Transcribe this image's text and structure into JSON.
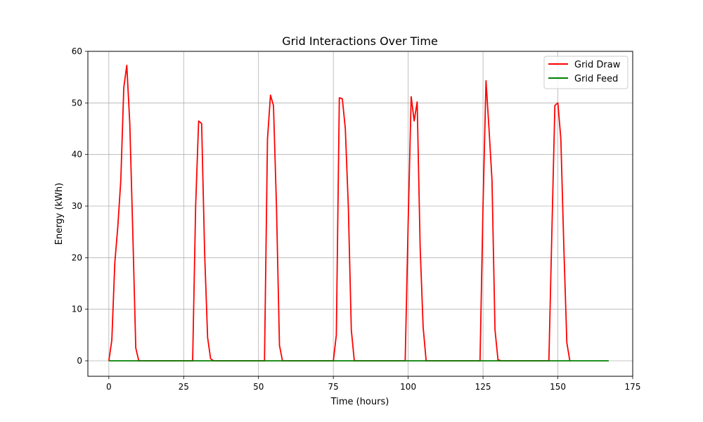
{
  "chart_data": {
    "type": "line",
    "title": "Grid Interactions Over Time",
    "xlabel": "Time (hours)",
    "ylabel": "Energy (kWh)",
    "xlim": [
      -7,
      175
    ],
    "ylim": [
      -3,
      60
    ],
    "xticks": [
      0,
      25,
      50,
      75,
      100,
      125,
      150,
      175
    ],
    "yticks": [
      0,
      10,
      20,
      30,
      40,
      50,
      60
    ],
    "grid": true,
    "legend_position": "top-right",
    "series": [
      {
        "name": "Grid Draw",
        "color": "#ff0000",
        "points": [
          [
            0,
            0
          ],
          [
            1,
            4
          ],
          [
            2,
            19
          ],
          [
            3,
            26
          ],
          [
            4,
            35
          ],
          [
            5,
            53
          ],
          [
            6,
            57.3
          ],
          [
            7,
            46
          ],
          [
            8,
            25
          ],
          [
            9,
            2.5
          ],
          [
            10,
            0
          ],
          [
            28,
            0
          ],
          [
            29,
            30
          ],
          [
            30,
            46.5
          ],
          [
            31,
            46
          ],
          [
            32,
            21
          ],
          [
            33,
            4.5
          ],
          [
            34,
            0.4
          ],
          [
            35,
            0
          ],
          [
            52,
            0
          ],
          [
            53,
            43
          ],
          [
            54,
            51.5
          ],
          [
            55,
            49.5
          ],
          [
            56,
            30
          ],
          [
            57,
            3
          ],
          [
            58,
            0
          ],
          [
            75,
            0
          ],
          [
            76,
            5
          ],
          [
            77,
            51
          ],
          [
            78,
            50.8
          ],
          [
            79,
            45
          ],
          [
            80,
            30
          ],
          [
            81,
            6
          ],
          [
            82,
            0
          ],
          [
            99,
            0
          ],
          [
            100,
            27
          ],
          [
            101,
            51.2
          ],
          [
            102,
            46.5
          ],
          [
            103,
            50.2
          ],
          [
            104,
            22
          ],
          [
            105,
            6.5
          ],
          [
            106,
            0
          ],
          [
            124,
            0
          ],
          [
            125,
            30
          ],
          [
            126,
            54.3
          ],
          [
            127,
            45
          ],
          [
            128,
            35
          ],
          [
            129,
            6
          ],
          [
            130,
            0.2
          ],
          [
            131,
            0
          ],
          [
            147,
            0
          ],
          [
            148,
            25
          ],
          [
            149,
            49.5
          ],
          [
            150,
            50
          ],
          [
            151,
            43
          ],
          [
            152,
            22
          ],
          [
            153,
            3.5
          ],
          [
            154,
            0
          ]
        ]
      },
      {
        "name": "Grid Feed",
        "color": "#008000",
        "points": [
          [
            0,
            0
          ],
          [
            167,
            0
          ]
        ]
      }
    ]
  }
}
